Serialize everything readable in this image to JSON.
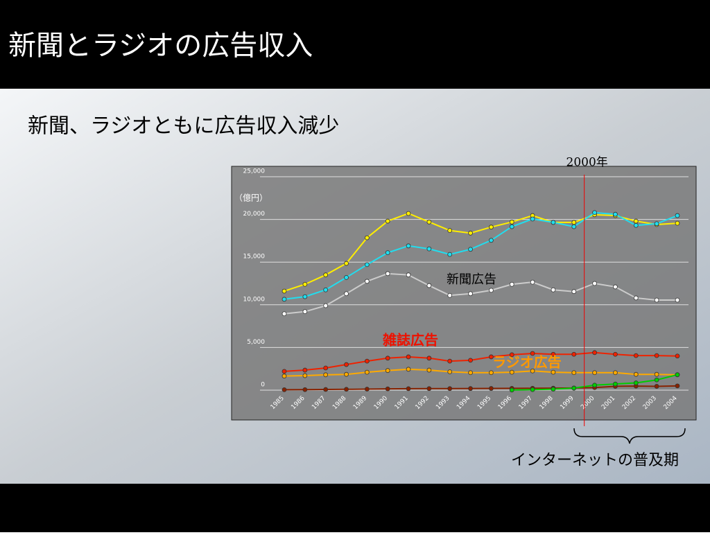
{
  "slide": {
    "title": "新聞とラジオの広告収入",
    "subtitle": "新聞、ラジオともに広告収入減少",
    "brace_label": "インターネットの普及期"
  },
  "chart_data": {
    "type": "line",
    "y_unit": "（億円）",
    "categories": [
      "1985",
      "1986",
      "1987",
      "1988",
      "1989",
      "1990",
      "1991",
      "1992",
      "1993",
      "1994",
      "1995",
      "1996",
      "1997",
      "1998",
      "1999",
      "2000",
      "2001",
      "2002",
      "2003",
      "2004"
    ],
    "ylim": [
      0,
      25000
    ],
    "yticks": [
      0,
      {
        "value": 5000,
        "label": "5,000"
      },
      {
        "value": 10000,
        "label": "10,000"
      },
      {
        "value": 15000,
        "label": "15,000"
      },
      {
        "value": 20000,
        "label": "20,000"
      },
      {
        "value": 25000,
        "label": "25,000"
      }
    ],
    "grid": true,
    "series": [
      {
        "color": "#ffee00",
        "values": [
          11600,
          12400,
          13500,
          14850,
          17850,
          19800,
          20700,
          19700,
          18700,
          18400,
          19100,
          19700,
          20450,
          19650,
          19650,
          20550,
          20450,
          19800,
          19400,
          19550
        ]
      },
      {
        "color": "#22ddee",
        "values": [
          10650,
          10950,
          11750,
          13200,
          14700,
          16100,
          16900,
          16550,
          15900,
          16500,
          17550,
          19150,
          20050,
          19650,
          19150,
          20800,
          20600,
          19300,
          19500,
          20450
        ]
      },
      {
        "color": "#cccccc",
        "values": [
          8950,
          9200,
          9900,
          11300,
          12750,
          13650,
          13500,
          12250,
          11100,
          11300,
          11700,
          12400,
          12650,
          11750,
          11550,
          12500,
          12100,
          10800,
          10550,
          10550
        ]
      },
      {
        "color": "#ee2200",
        "values": [
          2200,
          2350,
          2600,
          3000,
          3400,
          3750,
          3900,
          3750,
          3400,
          3500,
          3900,
          4150,
          4300,
          4200,
          4200,
          4400,
          4200,
          4050,
          4050,
          4000
        ]
      },
      {
        "color": "#ffaa00",
        "values": [
          1650,
          1700,
          1800,
          1850,
          2100,
          2300,
          2450,
          2350,
          2150,
          2050,
          2050,
          2100,
          2250,
          2100,
          2050,
          2050,
          2050,
          1850,
          1850,
          1800
        ]
      },
      {
        "color": "#882200",
        "values": [
          50,
          60,
          80,
          100,
          120,
          150,
          170,
          180,
          180,
          190,
          200,
          210,
          220,
          230,
          250,
          300,
          450,
          480,
          450,
          500
        ]
      },
      {
        "color": "#00cc00",
        "values": [
          null,
          null,
          null,
          null,
          null,
          null,
          null,
          null,
          null,
          null,
          null,
          16,
          60,
          110,
          240,
          590,
          720,
          850,
          1200,
          1810
        ]
      }
    ],
    "annotations": [
      {
        "text": "新聞広告",
        "color": "#000000"
      },
      {
        "text": "雑誌広告",
        "color": "#ee1100"
      },
      {
        "text": "ラジオ広告",
        "color": "#ff9900"
      }
    ],
    "vline": {
      "at": "2000",
      "label": "2000年",
      "color": "#ee0000"
    }
  }
}
